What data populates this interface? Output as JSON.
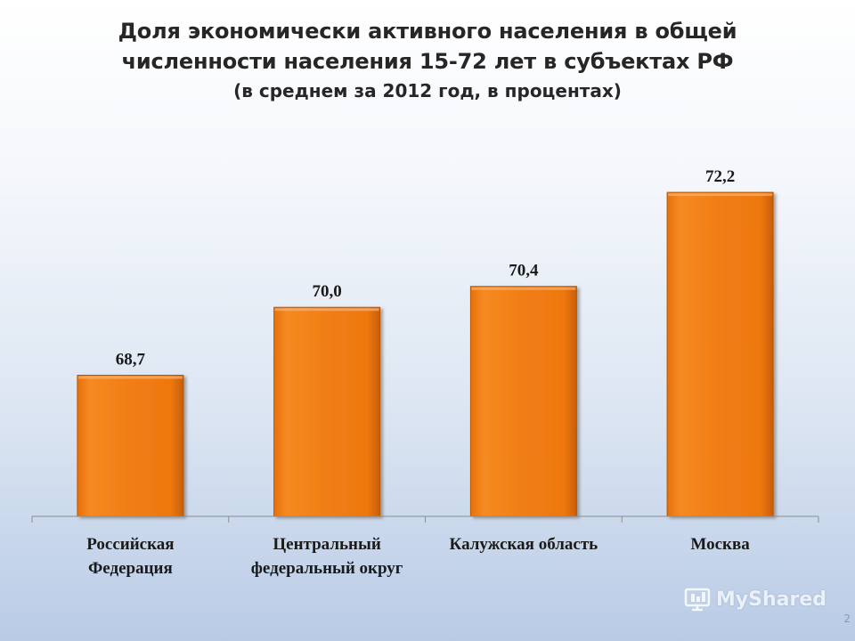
{
  "chart_data": {
    "type": "bar",
    "title_lines": [
      "Доля экономически активного населения в общей",
      "численности населения 15-72 лет в субъектах РФ"
    ],
    "subtitle": "(в среднем за 2012 год, в процентах)",
    "categories": [
      "Российская\nФедерация",
      "Центральный\nфедеральный округ",
      "Калужская область",
      "Москва"
    ],
    "values": [
      68.7,
      70.0,
      70.4,
      72.2
    ],
    "value_labels": [
      "68,7",
      "70,0",
      "70,4",
      "72,2"
    ],
    "ylim": [
      66.0,
      72.9
    ],
    "grid": false,
    "legend": "none",
    "bar_color": "#f07d14"
  },
  "watermark": {
    "text": "MyShared",
    "icon": "mysahred-logo-icon"
  },
  "page_number": "2"
}
